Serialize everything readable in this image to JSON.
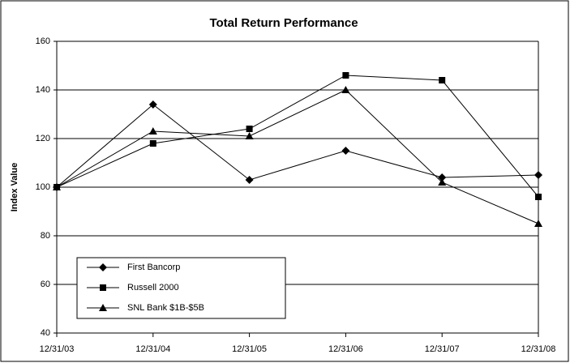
{
  "chart_data": {
    "type": "line",
    "title": "Total Return Performance",
    "y_label": "Index Value",
    "categories": [
      "12/31/03",
      "12/31/04",
      "12/31/05",
      "12/31/06",
      "12/31/07",
      "12/31/08"
    ],
    "series": [
      {
        "name": "First Bancorp",
        "color": "#000000",
        "marker": "diamond",
        "values": [
          100,
          134,
          103,
          115,
          104,
          105
        ]
      },
      {
        "name": "Russell 2000",
        "color": "#000000",
        "marker": "square",
        "values": [
          100,
          118,
          124,
          146,
          144,
          96
        ]
      },
      {
        "name": "SNL Bank $1B-$5B",
        "color": "#000000",
        "marker": "triangle",
        "values": [
          100,
          123,
          121,
          140,
          102,
          85
        ]
      }
    ],
    "ylim": [
      40,
      160
    ],
    "yticks": [
      40,
      60,
      80,
      100,
      120,
      140,
      160
    ],
    "grid": true,
    "legend": "lower left"
  }
}
